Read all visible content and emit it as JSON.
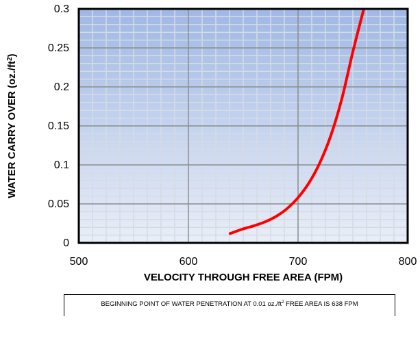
{
  "chart_data": {
    "type": "line",
    "title": "",
    "xlabel": "VELOCITY THROUGH FREE AREA (FPM)",
    "ylabel_main": "WATER CARRY OVER (oz./ft",
    "ylabel_sup": "2",
    "ylabel_end": ")",
    "xlim": [
      500,
      800
    ],
    "ylim": [
      0,
      0.3
    ],
    "x_ticks": [
      500,
      600,
      700,
      800
    ],
    "x_tick_labels": [
      "500",
      "600",
      "700",
      "800"
    ],
    "y_ticks": [
      0,
      0.05,
      0.1,
      0.15,
      0.2,
      0.25,
      0.3
    ],
    "y_tick_labels": [
      "0",
      "0.05",
      "0.1",
      "0.15",
      "0.2",
      "0.25",
      "0.3"
    ],
    "x_minor_step": 12.5,
    "y_minor_step": 0.01,
    "grid": true,
    "series": [
      {
        "color": "#ff0000",
        "x": [
          638,
          650,
          660,
          670,
          680,
          690,
          700,
          710,
          720,
          730,
          740,
          750,
          760
        ],
        "y": [
          0.012,
          0.018,
          0.022,
          0.027,
          0.034,
          0.044,
          0.058,
          0.077,
          0.103,
          0.138,
          0.185,
          0.245,
          0.3
        ]
      }
    ],
    "colors": {
      "plot_top": "#9fb8e4",
      "plot_bottom": "#e9eef8",
      "major_grid": "#8c8c8c",
      "minor_grid": "#d6dbe3",
      "line": "#ff0000"
    }
  },
  "note": {
    "before": "BEGINNING POINT OF WATER PENETRATION AT 0.01 oz./ft",
    "sup": "2",
    "after": " FREE AREA IS 638 FPM"
  }
}
